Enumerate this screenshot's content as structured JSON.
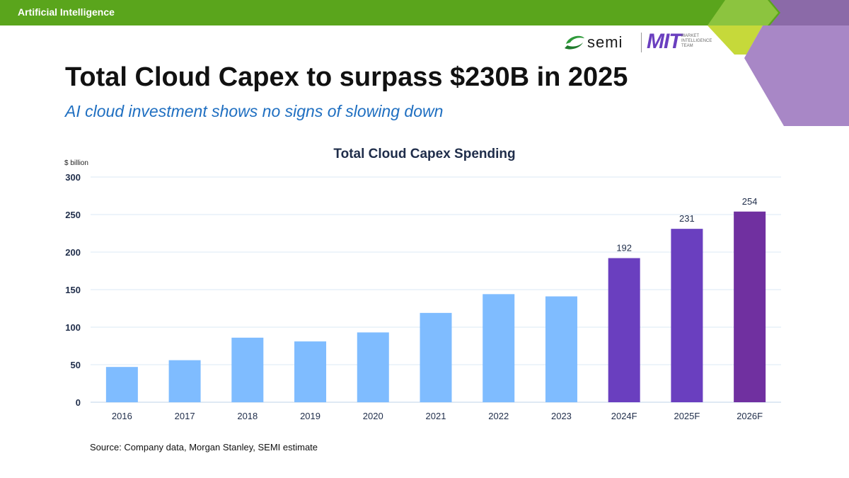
{
  "header": {
    "section_label": "Artificial Intelligence",
    "colors": {
      "bar": "#5aa51c",
      "lime": "#c6d93a",
      "light_green": "#8cc43f",
      "purple": "#a887c6",
      "dark_purple": "#8b6aa8"
    }
  },
  "logos": {
    "semi": {
      "icon": "semi-swoosh-icon",
      "text": "semi"
    },
    "mit": {
      "text": "MIT",
      "subtitle_lines": [
        "MARKET",
        "INTELLIGENCE",
        "TEAM"
      ]
    }
  },
  "slide": {
    "title": "Total Cloud Capex to surpass $230B in 2025",
    "subtitle": "AI cloud investment shows no signs of slowing down",
    "source": "Source: Company data, Morgan Stanley, SEMI estimate"
  },
  "chart_data": {
    "type": "bar",
    "title": "Total Cloud Capex Spending",
    "ylabel": "$ billion",
    "xlabel": "",
    "ylim": [
      0,
      300
    ],
    "yticks": [
      0,
      50,
      100,
      150,
      200,
      250,
      300
    ],
    "grid": true,
    "categories": [
      "2016",
      "2017",
      "2018",
      "2019",
      "2020",
      "2021",
      "2022",
      "2023",
      "2024F",
      "2025F",
      "2026F"
    ],
    "values": [
      47,
      56,
      86,
      81,
      93,
      119,
      144,
      141,
      192,
      231,
      254
    ],
    "data_labels": [
      "",
      "",
      "",
      "",
      "",
      "",
      "",
      "",
      "192",
      "231",
      "254"
    ],
    "bar_colors": [
      "#7fbcff",
      "#7fbcff",
      "#7fbcff",
      "#7fbcff",
      "#7fbcff",
      "#7fbcff",
      "#7fbcff",
      "#7fbcff",
      "#6a3fbf",
      "#6a3fbf",
      "#7030a0"
    ]
  }
}
